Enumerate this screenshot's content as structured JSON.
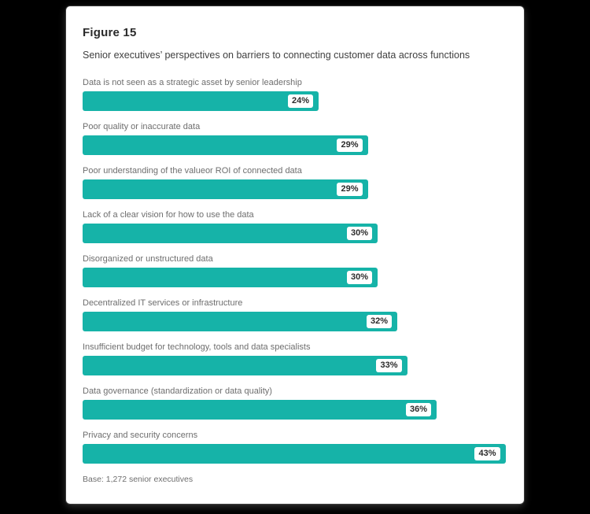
{
  "colors": {
    "page_background": "#000000",
    "card_background": "#ffffff",
    "bar_fill": "#16b3a8",
    "badge_background": "#ffffff",
    "badge_text": "#2b2b2b",
    "title_text": "#2a2a2a",
    "label_text": "#6e6e6e"
  },
  "chart_data": {
    "type": "bar",
    "orientation": "horizontal",
    "title": "Figure 15",
    "subtitle": "Senior executives’ perspectives on barriers to connecting customer data across functions",
    "categories": [
      "Data is not seen as a strategic asset by senior leadership",
      "Poor quality or inaccurate data",
      "Poor understanding of the valueor ROI of connected data",
      "Lack of a clear vision for how to use the data",
      "Disorganized or unstructured data",
      "Decentralized IT services or infrastructure",
      "Insufficient budget for technology, tools and data specialists",
      "Data governance (standardization or data quality)",
      "Privacy and security concerns"
    ],
    "values": [
      24,
      29,
      29,
      30,
      30,
      32,
      33,
      36,
      43
    ],
    "value_labels": [
      "24%",
      "29%",
      "29%",
      "30%",
      "30%",
      "32%",
      "33%",
      "36%",
      "43%"
    ],
    "unit": "%",
    "xlim": [
      0,
      43
    ],
    "grid": false,
    "legend": false,
    "value_label_position": "inside-end",
    "base_note": "Base: 1,272 senior executives"
  }
}
